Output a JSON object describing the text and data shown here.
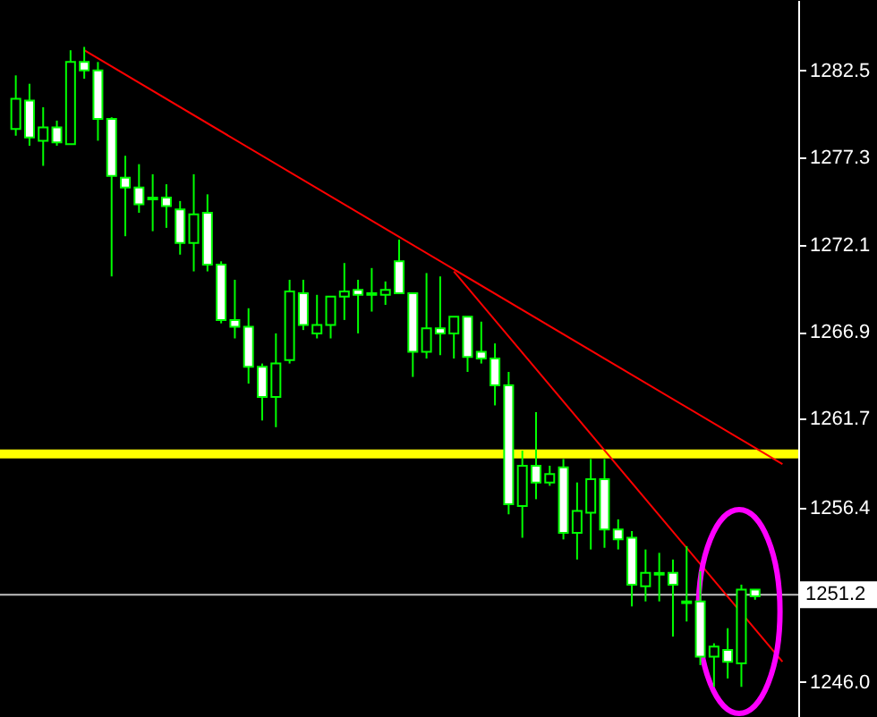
{
  "chart_data": {
    "type": "candlestick",
    "categories": [
      null,
      null,
      null,
      null,
      null,
      null,
      null,
      null,
      null,
      null,
      null,
      null,
      null,
      null,
      null,
      null,
      null,
      null,
      null,
      null,
      null,
      null,
      null,
      null,
      null,
      null,
      null,
      null,
      null,
      null,
      null,
      null,
      null,
      null,
      null,
      null,
      null,
      null,
      null,
      null,
      null,
      null,
      null,
      null,
      null,
      null,
      null,
      null,
      null,
      null,
      null,
      null,
      null,
      null,
      null,
      null,
      null
    ],
    "ohlc": [
      [
        1279.0,
        1282.2,
        1278.6,
        1280.8
      ],
      [
        1280.7,
        1281.7,
        1278.0,
        1278.5
      ],
      [
        1278.3,
        1280.3,
        1276.8,
        1279.1
      ],
      [
        1279.1,
        1279.5,
        1278.0,
        1278.2
      ],
      [
        1278.1,
        1283.7,
        1278.1,
        1283.0
      ],
      [
        1283.0,
        1283.9,
        1282.0,
        1282.5
      ],
      [
        1282.5,
        1283.0,
        1278.3,
        1279.6
      ],
      [
        1279.6,
        1279.7,
        1270.2,
        1276.2
      ],
      [
        1276.1,
        1277.4,
        1272.6,
        1275.5
      ],
      [
        1275.5,
        1276.9,
        1274.0,
        1274.5
      ],
      [
        1274.9,
        1276.3,
        1272.9,
        1274.8
      ],
      [
        1274.9,
        1275.7,
        1273.1,
        1274.4
      ],
      [
        1274.2,
        1274.7,
        1271.5,
        1272.2
      ],
      [
        1272.2,
        1276.3,
        1270.5,
        1273.9
      ],
      [
        1274.0,
        1275.1,
        1270.5,
        1270.9
      ],
      [
        1270.9,
        1271.1,
        1267.4,
        1267.6
      ],
      [
        1267.6,
        1270.0,
        1266.5,
        1267.2
      ],
      [
        1267.2,
        1268.3,
        1263.8,
        1264.8
      ],
      [
        1264.8,
        1265.0,
        1261.6,
        1263.0
      ],
      [
        1263.0,
        1266.8,
        1261.2,
        1265.0
      ],
      [
        1265.2,
        1270.0,
        1265.0,
        1269.3
      ],
      [
        1269.2,
        1270.0,
        1267.0,
        1267.3
      ],
      [
        1266.8,
        1269.1,
        1266.5,
        1267.3
      ],
      [
        1267.3,
        1269.0,
        1266.5,
        1269.0
      ],
      [
        1269.0,
        1271.0,
        1267.6,
        1269.3
      ],
      [
        1269.4,
        1270.0,
        1266.8,
        1269.1
      ],
      [
        1269.1,
        1270.7,
        1268.1,
        1269.2
      ],
      [
        1269.1,
        1269.9,
        1268.5,
        1269.4
      ],
      [
        1271.1,
        1272.4,
        1269.2,
        1269.2
      ],
      [
        1269.2,
        1269.2,
        1264.2,
        1265.7
      ],
      [
        1265.7,
        1270.4,
        1265.3,
        1267.1
      ],
      [
        1267.1,
        1270.2,
        1265.5,
        1266.8
      ],
      [
        1266.8,
        1267.8,
        1265.3,
        1267.8
      ],
      [
        1267.8,
        1267.8,
        1264.5,
        1265.4
      ],
      [
        1265.7,
        1267.5,
        1265.0,
        1265.3
      ],
      [
        1265.3,
        1266.2,
        1262.5,
        1263.7
      ],
      [
        1263.7,
        1264.5,
        1256.0,
        1256.6
      ],
      [
        1256.5,
        1259.8,
        1254.6,
        1258.9
      ],
      [
        1258.9,
        1262.1,
        1256.9,
        1257.9
      ],
      [
        1257.9,
        1258.9,
        1257.7,
        1258.4
      ],
      [
        1258.8,
        1259.3,
        1254.5,
        1254.9
      ],
      [
        1254.9,
        1257.9,
        1253.3,
        1256.2
      ],
      [
        1256.1,
        1259.3,
        1253.9,
        1258.1
      ],
      [
        1258.1,
        1259.3,
        1254.0,
        1255.1
      ],
      [
        1255.1,
        1255.7,
        1253.9,
        1254.5
      ],
      [
        1254.6,
        1255.0,
        1250.5,
        1251.8
      ],
      [
        1251.7,
        1253.9,
        1250.8,
        1252.5
      ],
      [
        1252.4,
        1253.7,
        1250.8,
        1252.5
      ],
      [
        1252.5,
        1253.3,
        1248.7,
        1251.8
      ],
      [
        1250.7,
        1254.1,
        1249.6,
        1250.8
      ],
      [
        1250.8,
        1252.6,
        1247.0,
        1247.5
      ],
      [
        1247.5,
        1248.3,
        1245.7,
        1248.1
      ],
      [
        1247.9,
        1249.2,
        1246.2,
        1247.2
      ],
      [
        1247.1,
        1251.8,
        1245.7,
        1251.5
      ],
      [
        1251.5,
        1251.5,
        1250.9,
        1251.1
      ],
      null,
      null
    ],
    "series": [
      {
        "type": "line",
        "color": "#ff0000",
        "values": [
          null,
          null,
          null,
          null,
          null,
          1283.7,
          null,
          null,
          null,
          null,
          null,
          null,
          null,
          null,
          null,
          null,
          null,
          null,
          null,
          null,
          null,
          null,
          null,
          null,
          null,
          null,
          null,
          null,
          null,
          null,
          null,
          null,
          null,
          null,
          null,
          null,
          null,
          null,
          null,
          null,
          null,
          null,
          null,
          null,
          null,
          null,
          null,
          null,
          null,
          null,
          null,
          null,
          null,
          null,
          null,
          null,
          1259.0
        ]
      },
      {
        "type": "line",
        "color": "#ff0000",
        "values": [
          null,
          null,
          null,
          null,
          null,
          null,
          null,
          null,
          null,
          null,
          null,
          null,
          null,
          null,
          null,
          null,
          null,
          null,
          null,
          null,
          null,
          null,
          null,
          null,
          null,
          null,
          null,
          null,
          null,
          null,
          null,
          null,
          1270.5,
          null,
          null,
          null,
          null,
          null,
          null,
          null,
          null,
          null,
          null,
          null,
          null,
          null,
          null,
          null,
          null,
          null,
          null,
          null,
          null,
          null,
          null,
          null,
          1247.2
        ]
      }
    ],
    "color": "#00ff00",
    "ylim": [
      1243.9,
      1286.7
    ],
    "yticks": [
      {
        "value": 1246.0,
        "label": "1246.0"
      },
      {
        "value": 1256.4,
        "label": "1256.4"
      },
      {
        "value": 1261.7,
        "label": "1261.7"
      },
      {
        "value": 1266.9,
        "label": "1266.9"
      },
      {
        "value": 1272.1,
        "label": "1272.1"
      },
      {
        "value": 1277.3,
        "label": "1277.3"
      },
      {
        "value": 1282.5,
        "label": "1282.5"
      }
    ],
    "ref_lines": [
      {
        "axis": "y",
        "value": 1259.6,
        "color": "#ffff00"
      },
      {
        "axis": "y",
        "value": 1251.2,
        "label": "1251.2",
        "color": "#c0c0c0"
      }
    ],
    "grid": false
  }
}
